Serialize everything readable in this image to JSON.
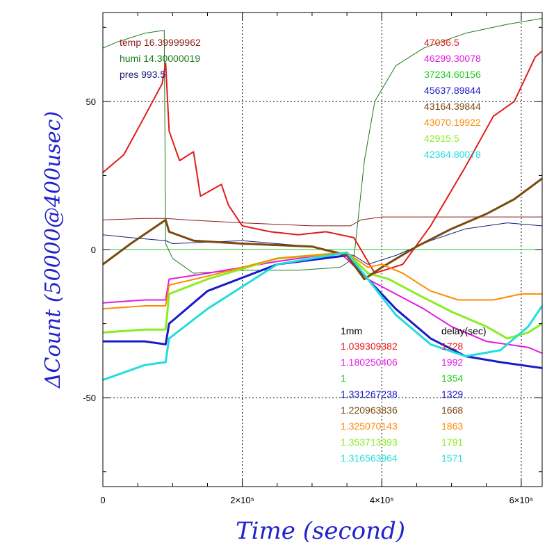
{
  "chart_data": {
    "type": "line",
    "xlabel": "Time (second)",
    "ylabel": "ΔCount (50000@400usec)",
    "xlim": [
      0,
      630000
    ],
    "ylim": [
      -80,
      80
    ],
    "x_ticks": [
      {
        "value": 0,
        "label": "0"
      },
      {
        "value": 200000,
        "label": "2×10⁵"
      },
      {
        "value": 400000,
        "label": "4×10⁵"
      },
      {
        "value": 600000,
        "label": "6×10⁵"
      }
    ],
    "y_ticks": [
      {
        "value": -50,
        "label": "-50"
      },
      {
        "value": 0,
        "label": "0"
      },
      {
        "value": 50,
        "label": "50"
      }
    ],
    "grid": "dotted at labelled ticks",
    "env_legend": [
      {
        "text": "temp 16.39999962",
        "color": "#8b1a1a"
      },
      {
        "text": "humi 14.30000019",
        "color": "#1a7a1a"
      },
      {
        "text": "pres 993.5",
        "color": "#1a1a7a"
      }
    ],
    "base_values": [
      {
        "text": "47036.5",
        "color": "#e31a1a"
      },
      {
        "text": "46299.30078",
        "color": "#e31ae3"
      },
      {
        "text": "37234.60156",
        "color": "#22cc22"
      },
      {
        "text": "45637.89844",
        "color": "#1a1acc"
      },
      {
        "text": "43164.39844",
        "color": "#7a4a10"
      },
      {
        "text": "43070.19922",
        "color": "#ff8a00"
      },
      {
        "text": "42915.5",
        "color": "#88ee22"
      },
      {
        "text": "42364.80078",
        "color": "#22dddd"
      }
    ],
    "calib_table": {
      "header_left": "1mm",
      "header_right": "delay(sec)",
      "rows": [
        {
          "factor": "1.039309382",
          "delay": "1728",
          "color": "#e31a1a"
        },
        {
          "factor": "1.180250406",
          "delay": "1992",
          "color": "#e31ae3"
        },
        {
          "factor": "1",
          "delay": "1354",
          "color": "#22cc22"
        },
        {
          "factor": "1.331267238",
          "delay": "1329",
          "color": "#1a1acc"
        },
        {
          "factor": "1.220963836",
          "delay": "1668",
          "color": "#7a4a10"
        },
        {
          "factor": "1.325070143",
          "delay": "1863",
          "color": "#ff8a00"
        },
        {
          "factor": "1.353713393",
          "delay": "1791",
          "color": "#88ee22"
        },
        {
          "factor": "1.316563964",
          "delay": "1571",
          "color": "#22dddd"
        }
      ]
    },
    "series": [
      {
        "name": "zero-line",
        "color": "#22cc22",
        "width": 1,
        "points": [
          [
            0,
            0
          ],
          [
            630000,
            0
          ]
        ]
      },
      {
        "name": "temp",
        "color": "#8b1a1a",
        "width": 1,
        "points": [
          [
            0,
            10
          ],
          [
            60000,
            10.5
          ],
          [
            90000,
            10.5
          ],
          [
            120000,
            10
          ],
          [
            200000,
            9
          ],
          [
            300000,
            8
          ],
          [
            355000,
            8
          ],
          [
            370000,
            10
          ],
          [
            400000,
            11
          ],
          [
            500000,
            11
          ],
          [
            630000,
            11
          ]
        ]
      },
      {
        "name": "humi",
        "color": "#1a7a1a",
        "width": 1,
        "points": [
          [
            0,
            68
          ],
          [
            20000,
            70
          ],
          [
            60000,
            73
          ],
          [
            88000,
            74
          ],
          [
            90000,
            2
          ],
          [
            100000,
            -3
          ],
          [
            130000,
            -8
          ],
          [
            200000,
            -7
          ],
          [
            280000,
            -7
          ],
          [
            340000,
            -6
          ],
          [
            360000,
            -3
          ],
          [
            375000,
            30
          ],
          [
            390000,
            50
          ],
          [
            420000,
            62
          ],
          [
            460000,
            68
          ],
          [
            520000,
            73
          ],
          [
            580000,
            76
          ],
          [
            630000,
            78
          ]
        ]
      },
      {
        "name": "pres",
        "color": "#1a1a7a",
        "width": 1,
        "points": [
          [
            0,
            5
          ],
          [
            40000,
            4
          ],
          [
            90000,
            3
          ],
          [
            100000,
            2
          ],
          [
            200000,
            3
          ],
          [
            300000,
            1
          ],
          [
            360000,
            -2
          ],
          [
            380000,
            -5
          ],
          [
            420000,
            -2
          ],
          [
            470000,
            3
          ],
          [
            520000,
            7
          ],
          [
            580000,
            9
          ],
          [
            630000,
            8
          ]
        ]
      },
      {
        "name": "ch1",
        "color": "#e31a1a",
        "width": 2,
        "points": [
          [
            0,
            26
          ],
          [
            30000,
            32
          ],
          [
            60000,
            45
          ],
          [
            85000,
            56
          ],
          [
            90000,
            63
          ],
          [
            95000,
            40
          ],
          [
            110000,
            30
          ],
          [
            130000,
            33
          ],
          [
            140000,
            18
          ],
          [
            170000,
            22
          ],
          [
            180000,
            15
          ],
          [
            200000,
            8
          ],
          [
            240000,
            6
          ],
          [
            280000,
            5
          ],
          [
            320000,
            6
          ],
          [
            360000,
            4
          ],
          [
            390000,
            -8
          ],
          [
            430000,
            -5
          ],
          [
            470000,
            8
          ],
          [
            520000,
            28
          ],
          [
            560000,
            45
          ],
          [
            590000,
            50
          ],
          [
            620000,
            65
          ],
          [
            630000,
            67
          ]
        ]
      },
      {
        "name": "ch2",
        "color": "#e31ae3",
        "width": 2,
        "points": [
          [
            0,
            -18
          ],
          [
            60000,
            -17
          ],
          [
            90000,
            -17
          ],
          [
            95000,
            -10
          ],
          [
            150000,
            -8
          ],
          [
            250000,
            -4
          ],
          [
            340000,
            -1
          ],
          [
            380000,
            -10
          ],
          [
            420000,
            -15
          ],
          [
            460000,
            -20
          ],
          [
            500000,
            -26
          ],
          [
            550000,
            -31
          ],
          [
            580000,
            -32
          ],
          [
            610000,
            -33
          ],
          [
            630000,
            -35
          ]
        ]
      },
      {
        "name": "ch3",
        "color": "#88ee22",
        "width": 3,
        "points": [
          [
            0,
            -28
          ],
          [
            60000,
            -27
          ],
          [
            90000,
            -27
          ],
          [
            95000,
            -15
          ],
          [
            150000,
            -10
          ],
          [
            250000,
            -3
          ],
          [
            350000,
            -1
          ],
          [
            380000,
            -8
          ],
          [
            410000,
            -10
          ],
          [
            450000,
            -15
          ],
          [
            500000,
            -21
          ],
          [
            550000,
            -26
          ],
          [
            580000,
            -30
          ],
          [
            610000,
            -28
          ],
          [
            630000,
            -25
          ]
        ]
      },
      {
        "name": "ch4",
        "color": "#1a1acc",
        "width": 3,
        "points": [
          [
            0,
            -31
          ],
          [
            60000,
            -31
          ],
          [
            90000,
            -32
          ],
          [
            95000,
            -25
          ],
          [
            150000,
            -14
          ],
          [
            250000,
            -5
          ],
          [
            350000,
            -2
          ],
          [
            380000,
            -10
          ],
          [
            420000,
            -20
          ],
          [
            470000,
            -30
          ],
          [
            520000,
            -36
          ],
          [
            570000,
            -38
          ],
          [
            630000,
            -40
          ]
        ]
      },
      {
        "name": "ch5",
        "color": "#7a4a10",
        "width": 3,
        "points": [
          [
            0,
            -5
          ],
          [
            40000,
            2
          ],
          [
            90000,
            10
          ],
          [
            95000,
            6
          ],
          [
            130000,
            3
          ],
          [
            200000,
            2
          ],
          [
            300000,
            1
          ],
          [
            350000,
            -2
          ],
          [
            375000,
            -10
          ],
          [
            400000,
            -6
          ],
          [
            450000,
            1
          ],
          [
            500000,
            7
          ],
          [
            550000,
            12
          ],
          [
            590000,
            17
          ],
          [
            630000,
            24
          ]
        ]
      },
      {
        "name": "ch6",
        "color": "#ff8a00",
        "width": 2,
        "points": [
          [
            0,
            -20
          ],
          [
            60000,
            -19
          ],
          [
            90000,
            -19
          ],
          [
            95000,
            -12
          ],
          [
            150000,
            -9
          ],
          [
            250000,
            -3
          ],
          [
            350000,
            -1
          ],
          [
            380000,
            -6
          ],
          [
            400000,
            -5
          ],
          [
            430000,
            -8
          ],
          [
            470000,
            -14
          ],
          [
            510000,
            -17
          ],
          [
            560000,
            -17
          ],
          [
            600000,
            -15
          ],
          [
            630000,
            -15
          ]
        ]
      },
      {
        "name": "ch7",
        "color": "#22dddd",
        "width": 3,
        "points": [
          [
            0,
            -44
          ],
          [
            60000,
            -39
          ],
          [
            90000,
            -38
          ],
          [
            95000,
            -30
          ],
          [
            150000,
            -20
          ],
          [
            250000,
            -5
          ],
          [
            350000,
            -1
          ],
          [
            380000,
            -10
          ],
          [
            420000,
            -22
          ],
          [
            470000,
            -32
          ],
          [
            520000,
            -36
          ],
          [
            570000,
            -34
          ],
          [
            610000,
            -26
          ],
          [
            630000,
            -19
          ]
        ]
      }
    ]
  }
}
